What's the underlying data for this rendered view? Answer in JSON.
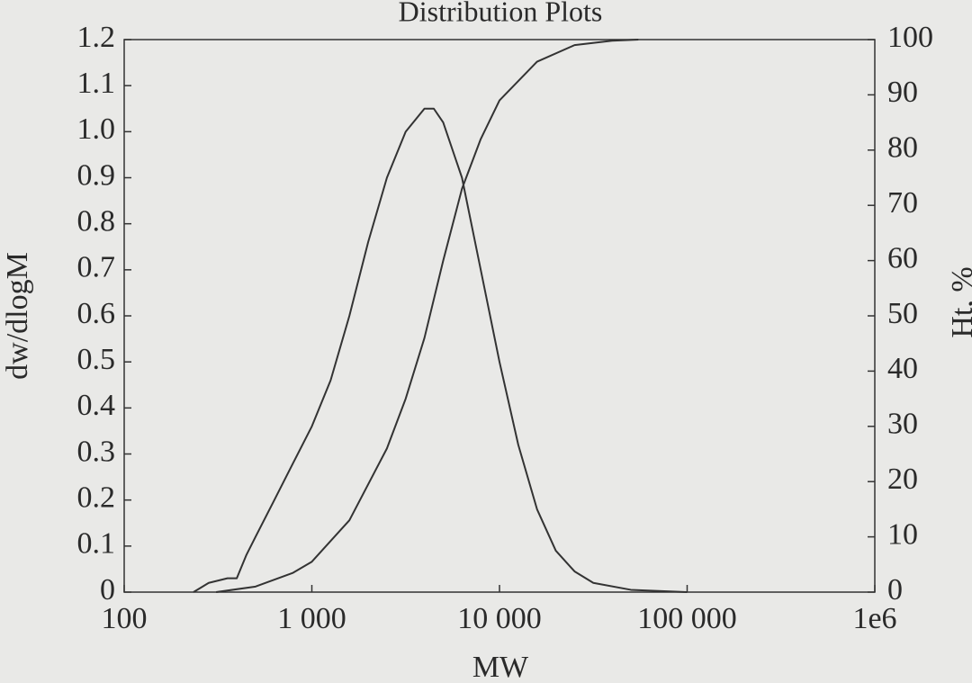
{
  "chart_data": {
    "type": "line",
    "title": "Distribution Plots",
    "x_label": "MW",
    "y_label": "dw/dlogM",
    "y2_label": "Ht, %",
    "log_x": true,
    "xlim": [
      100,
      1000000
    ],
    "xticks": [
      100,
      {
        "value": 1000,
        "label": "1 000"
      },
      {
        "value": 10000,
        "label": "10 000"
      },
      {
        "value": 100000,
        "label": "100 000"
      },
      {
        "value": 1000000,
        "label": "1e6"
      }
    ],
    "ylim": [
      0,
      1.2
    ],
    "yticks": [
      0,
      0.1,
      0.2,
      0.3,
      0.4,
      0.5,
      0.6,
      0.7,
      0.8,
      0.9,
      {
        "value": 1,
        "label": "1.0"
      },
      1.1,
      1.2
    ],
    "y2lim": [
      0,
      100
    ],
    "y2ticks": [
      0,
      10,
      20,
      30,
      40,
      50,
      60,
      70,
      80,
      90,
      100
    ],
    "grid": false,
    "series": [
      {
        "color": "#333333",
        "x": [
          234,
          282,
          355,
          398,
          447,
          501,
          631,
          794,
          1000,
          1259,
          1585,
          1995,
          2512,
          3162,
          3981,
          4467,
          5012,
          6310,
          7943,
          10000,
          12589,
          15849,
          19953,
          25119,
          31623,
          50119,
          100000
        ],
        "values": [
          0,
          0.02,
          0.03,
          0.03,
          0.08,
          0.12,
          0.2,
          0.28,
          0.36,
          0.46,
          0.6,
          0.76,
          0.9,
          1.0,
          1.05,
          1.05,
          1.02,
          0.9,
          0.7,
          0.5,
          0.32,
          0.18,
          0.09,
          0.045,
          0.02,
          0.005,
          0
        ]
      },
      {
        "color": "#333333",
        "axis": "y2",
        "x": [
          309,
          501,
          794,
          1000,
          1585,
          2512,
          3162,
          3981,
          5012,
          6310,
          7943,
          10000,
          15849,
          25119,
          39811,
          54954
        ],
        "values": [
          0,
          1,
          3.5,
          5.5,
          13,
          26,
          35,
          46,
          60,
          73,
          82,
          89,
          96,
          99,
          99.8,
          100
        ]
      }
    ]
  }
}
